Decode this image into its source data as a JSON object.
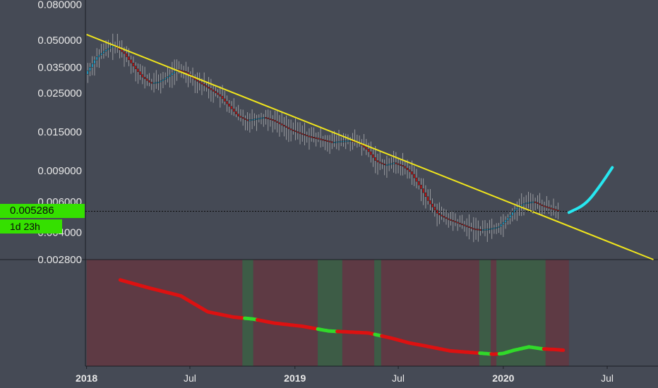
{
  "price_label": {
    "value": "0.005286",
    "countdown": "1d 23h",
    "color": "#35e000"
  },
  "colors": {
    "background": "#454a55",
    "candle_down": "#d81414",
    "candle_up": "#27b6e6",
    "wick": "#c8c8c8",
    "trendline": "#f0e51c",
    "projection": "#27e7f0",
    "indicator_down": "#dd1111",
    "indicator_up": "#31d92a",
    "zone_down": "#5e3a44",
    "zone_up": "#3d5c46",
    "axis_text": "#e8e8e8"
  },
  "chart_data": {
    "type": "candlestick",
    "title": "",
    "xlabel": "",
    "ylabel": "",
    "y_scale": "log",
    "ylim": [
      0.0028,
      0.085
    ],
    "y_ticks": [
      0.08,
      0.05,
      0.035,
      0.025,
      0.015,
      0.009,
      0.006,
      0.004,
      0.0028
    ],
    "y_tick_labels": [
      "0.080000",
      "0.050000",
      "0.035000",
      "0.025000",
      "0.015000",
      "0.009000",
      "0.006000",
      "0.004000",
      "0.002800"
    ],
    "x_tick_labels": [
      "2018",
      "Jul",
      "2019",
      "Jul",
      "2020",
      "Jul"
    ],
    "x_tick_dates": [
      "2018-01-01",
      "2018-07-01",
      "2019-01-01",
      "2019-07-01",
      "2020-01-01",
      "2020-07-01"
    ],
    "xlim": [
      "2017-12-30",
      "2020-09-28"
    ],
    "price_path": [
      [
        "2018-01-01",
        0.032
      ],
      [
        "2018-01-20",
        0.04
      ],
      [
        "2018-02-05",
        0.044
      ],
      [
        "2018-02-20",
        0.047
      ],
      [
        "2018-03-10",
        0.042
      ],
      [
        "2018-03-25",
        0.036
      ],
      [
        "2018-04-10",
        0.031
      ],
      [
        "2018-04-25",
        0.0285
      ],
      [
        "2018-05-10",
        0.029
      ],
      [
        "2018-05-25",
        0.031
      ],
      [
        "2018-06-10",
        0.034
      ],
      [
        "2018-06-25",
        0.033
      ],
      [
        "2018-07-10",
        0.03
      ],
      [
        "2018-07-25",
        0.028
      ],
      [
        "2018-08-10",
        0.026
      ],
      [
        "2018-08-25",
        0.024
      ],
      [
        "2018-09-10",
        0.021
      ],
      [
        "2018-09-25",
        0.0185
      ],
      [
        "2018-10-10",
        0.0175
      ],
      [
        "2018-10-25",
        0.0178
      ],
      [
        "2018-11-10",
        0.0182
      ],
      [
        "2018-11-25",
        0.0175
      ],
      [
        "2018-12-10",
        0.0165
      ],
      [
        "2018-12-25",
        0.0155
      ],
      [
        "2019-01-10",
        0.0148
      ],
      [
        "2019-01-25",
        0.0142
      ],
      [
        "2019-02-10",
        0.0138
      ],
      [
        "2019-02-25",
        0.0134
      ],
      [
        "2019-03-10",
        0.0131
      ],
      [
        "2019-03-25",
        0.0133
      ],
      [
        "2019-04-10",
        0.0134
      ],
      [
        "2019-04-25",
        0.013
      ],
      [
        "2019-05-10",
        0.0118
      ],
      [
        "2019-05-25",
        0.0102
      ],
      [
        "2019-06-10",
        0.0097
      ],
      [
        "2019-06-25",
        0.01
      ],
      [
        "2019-07-10",
        0.0096
      ],
      [
        "2019-07-25",
        0.0088
      ],
      [
        "2019-08-10",
        0.0073
      ],
      [
        "2019-08-25",
        0.006
      ],
      [
        "2019-09-10",
        0.0051
      ],
      [
        "2019-09-25",
        0.0048
      ],
      [
        "2019-10-10",
        0.0046
      ],
      [
        "2019-10-25",
        0.0044
      ],
      [
        "2019-11-10",
        0.0042
      ],
      [
        "2019-11-25",
        0.00415
      ],
      [
        "2019-12-10",
        0.0042
      ],
      [
        "2019-12-25",
        0.0043
      ],
      [
        "2020-01-10",
        0.0048
      ],
      [
        "2020-01-25",
        0.0055
      ],
      [
        "2020-02-10",
        0.0059
      ],
      [
        "2020-02-25",
        0.006
      ],
      [
        "2020-03-10",
        0.0057
      ],
      [
        "2020-03-25",
        0.0055
      ],
      [
        "2020-04-10",
        0.0053
      ]
    ],
    "trendline": [
      [
        "2018-01-01",
        0.054
      ],
      [
        "2020-09-20",
        0.0028
      ]
    ],
    "projection": [
      [
        "2020-04-25",
        0.0052
      ],
      [
        "2020-05-25",
        0.0058
      ],
      [
        "2020-06-20",
        0.0075
      ],
      [
        "2020-07-10",
        0.0094
      ]
    ],
    "current_price_line": 0.005286,
    "indicator_points": [
      [
        "2018-03-01",
        20
      ],
      [
        "2018-04-20",
        32
      ],
      [
        "2018-06-15",
        44
      ],
      [
        "2018-08-01",
        68
      ],
      [
        "2018-09-15",
        76
      ],
      [
        "2018-10-20",
        79
      ],
      [
        "2018-11-25",
        85
      ],
      [
        "2019-01-15",
        90
      ],
      [
        "2019-03-01",
        97
      ],
      [
        "2019-05-10",
        100
      ],
      [
        "2019-06-20",
        108
      ],
      [
        "2019-07-20",
        115
      ],
      [
        "2019-08-20",
        120
      ],
      [
        "2019-09-30",
        127
      ],
      [
        "2019-11-15",
        130
      ],
      [
        "2019-12-15",
        132
      ],
      [
        "2019-12-31",
        131
      ],
      [
        "2020-01-20",
        126
      ],
      [
        "2020-02-15",
        121
      ],
      [
        "2020-03-10",
        124
      ],
      [
        "2020-04-01",
        125
      ],
      [
        "2020-04-15",
        126
      ]
    ],
    "indicator_green_ranges": [
      [
        "2018-10-05",
        "2018-10-25"
      ],
      [
        "2019-02-10",
        "2019-03-15"
      ],
      [
        "2019-05-20",
        "2019-06-01"
      ],
      [
        "2019-11-20",
        "2019-12-10"
      ],
      [
        "2019-12-25",
        "2020-03-10"
      ]
    ],
    "indicator_ylim": [
      0,
      150
    ],
    "zones": [
      {
        "from": "2018-01-01",
        "to": "2018-10-01",
        "trend": "down"
      },
      {
        "from": "2018-10-01",
        "to": "2018-10-20",
        "trend": "up"
      },
      {
        "from": "2018-10-20",
        "to": "2019-02-10",
        "trend": "down"
      },
      {
        "from": "2019-02-10",
        "to": "2019-03-25",
        "trend": "up"
      },
      {
        "from": "2019-03-25",
        "to": "2019-05-20",
        "trend": "down"
      },
      {
        "from": "2019-05-20",
        "to": "2019-06-01",
        "trend": "up"
      },
      {
        "from": "2019-06-01",
        "to": "2019-11-20",
        "trend": "down"
      },
      {
        "from": "2019-11-20",
        "to": "2019-12-10",
        "trend": "up"
      },
      {
        "from": "2019-12-10",
        "to": "2019-12-20",
        "trend": "down"
      },
      {
        "from": "2019-12-20",
        "to": "2020-03-15",
        "trend": "up"
      },
      {
        "from": "2020-03-15",
        "to": "2020-04-25",
        "trend": "down"
      }
    ]
  }
}
